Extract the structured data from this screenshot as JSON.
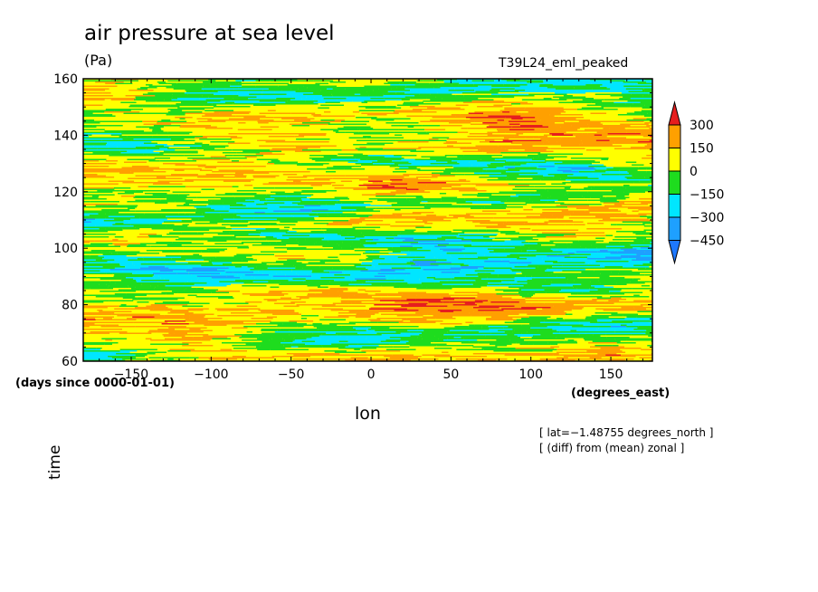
{
  "chart_data": {
    "type": "heatmap",
    "title": "air pressure at sea level",
    "units": "(Pa)",
    "run_name": "T39L24_eml_peaked",
    "xlabel": "lon",
    "ylabel": "time",
    "x_units": "(degrees_east)",
    "y_units": "(days since 0000-01-01)",
    "xlim": [
      -180,
      176
    ],
    "ylim": [
      60,
      160
    ],
    "x_ticks": [
      -150,
      -100,
      -50,
      0,
      50,
      100,
      150
    ],
    "x_tick_labels": [
      "−150",
      "−100",
      "−50",
      "0",
      "50",
      "100",
      "150"
    ],
    "y_ticks": [
      60,
      80,
      100,
      120,
      140,
      160
    ],
    "y_tick_labels": [
      "60",
      "80",
      "100",
      "120",
      "140",
      "160"
    ],
    "notes": [
      "[ lat=−1.48755 degrees_north ]",
      "[ (diff) from (mean) zonal ]"
    ],
    "colorbar": {
      "levels": [
        -450,
        -300,
        -150,
        0,
        150,
        300
      ],
      "labels": [
        "300",
        "150",
        "0",
        "−150",
        "−300",
        "−450"
      ],
      "colors": [
        "#1e78ff",
        "#1ea0ff",
        "#00e6ff",
        "#1edc1e",
        "#ffff00",
        "#ffa000",
        "#e61e1e"
      ]
    },
    "field_description_values": {
      "note": "",
      "cold_band_times": [
        68,
        88,
        92,
        103,
        115,
        131,
        155
      ],
      "warm_band_times": [
        62,
        78,
        84,
        110,
        123,
        135,
        147
      ]
    }
  }
}
